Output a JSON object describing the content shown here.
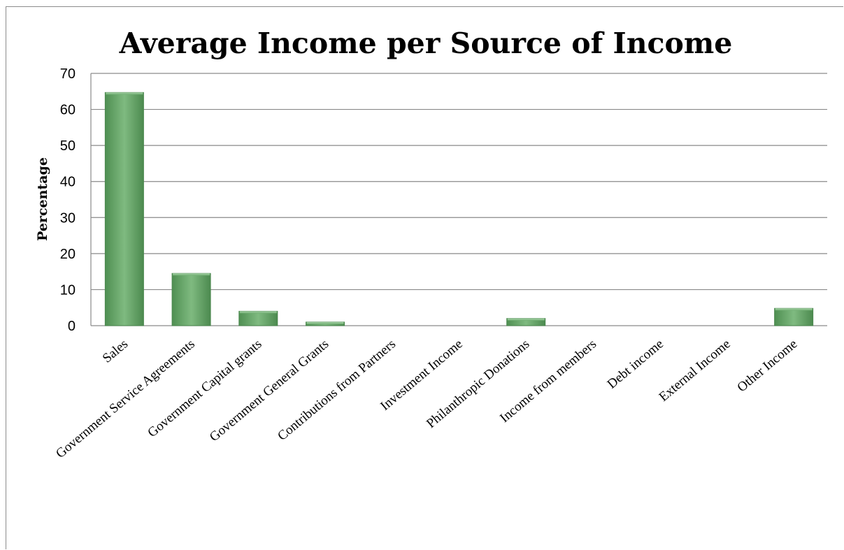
{
  "chart_data": {
    "type": "bar",
    "title": "Average Income per Source of Income",
    "xlabel": "",
    "ylabel": "Percentage",
    "ylim": [
      0,
      70
    ],
    "yticks": [
      0,
      10,
      20,
      30,
      40,
      50,
      60,
      70
    ],
    "grid": true,
    "categories": [
      "Sales",
      "Government Service Agreements",
      "Government Capital grants",
      "Government General Grants",
      "Contributions from Partners",
      "Investment Income",
      "Philanthropic Donations",
      "Income from members",
      "Debt income",
      "External Income",
      "Other Income"
    ],
    "values": [
      64.7,
      14.5,
      4.0,
      1.0,
      0,
      0,
      2.0,
      0,
      0,
      0,
      4.8
    ],
    "bar_color": "#5e9e60"
  }
}
